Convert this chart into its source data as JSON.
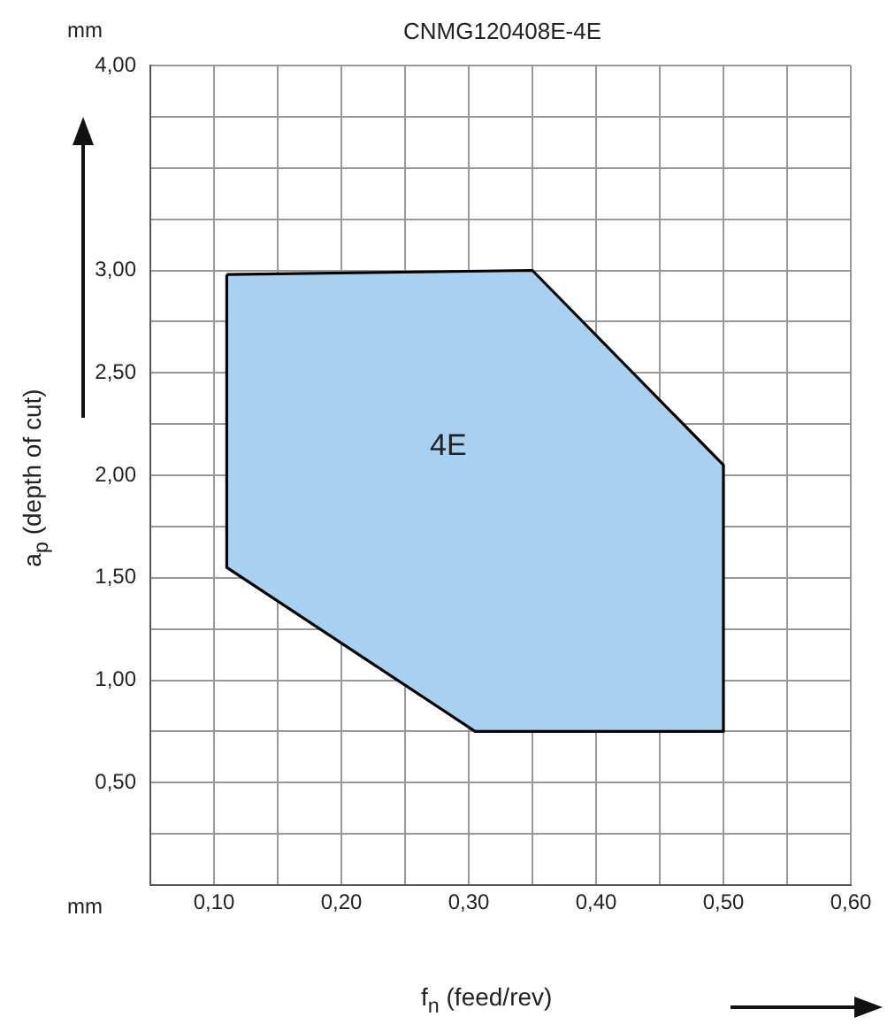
{
  "chart_data": {
    "type": "area",
    "title": "CNMG120408E-4E",
    "xlabel": "f$_{n}$ (feed/rev)",
    "ylabel": "a$_{p}$ (depth of cut)",
    "x": [
      0.11,
      0.35,
      0.5,
      0.5,
      0.305,
      0.11,
      0.11
    ],
    "series": [
      {
        "color": "#a8d0f0",
        "values": [
          2.98,
          3.0,
          2.05,
          0.75,
          0.75,
          1.55,
          2.98
        ]
      }
    ],
    "xlim": [
      0.05,
      0.6
    ],
    "xticks": [
      {
        "value": 0.05,
        "label": null
      },
      {
        "value": 0.1,
        "label": "0,10"
      },
      {
        "value": 0.15,
        "label": null
      },
      {
        "value": 0.2,
        "label": "0,20"
      },
      {
        "value": 0.25,
        "label": null
      },
      {
        "value": 0.3,
        "label": "0,30"
      },
      {
        "value": 0.35,
        "label": null
      },
      {
        "value": 0.4,
        "label": "0,40"
      },
      {
        "value": 0.45,
        "label": null
      },
      {
        "value": 0.5,
        "label": "0,50"
      },
      {
        "value": 0.55,
        "label": null
      },
      {
        "value": 0.6,
        "label": "0,60"
      }
    ],
    "ylim": [
      0,
      4
    ],
    "yticks": [
      {
        "value": 0,
        "label": null
      },
      {
        "value": 0.25,
        "label": null
      },
      {
        "value": 0.5,
        "label": "0,50"
      },
      {
        "value": 0.75,
        "label": null
      },
      {
        "value": 1,
        "label": "1,00"
      },
      {
        "value": 1.25,
        "label": null
      },
      {
        "value": 1.5,
        "label": "1,50"
      },
      {
        "value": 1.75,
        "label": null
      },
      {
        "value": 2,
        "label": "2,00"
      },
      {
        "value": 2.25,
        "label": null
      },
      {
        "value": 2.5,
        "label": "2,50"
      },
      {
        "value": 2.75,
        "label": null
      },
      {
        "value": 3,
        "label": "3,00"
      },
      {
        "value": 3.25,
        "label": null
      },
      {
        "value": 3.5,
        "label": null
      },
      {
        "value": 3.75,
        "label": null
      },
      {
        "value": 4,
        "label": "4,00"
      }
    ],
    "grid": true,
    "legend": false,
    "annotations": [
      "mm",
      "mm",
      "4E"
    ]
  }
}
